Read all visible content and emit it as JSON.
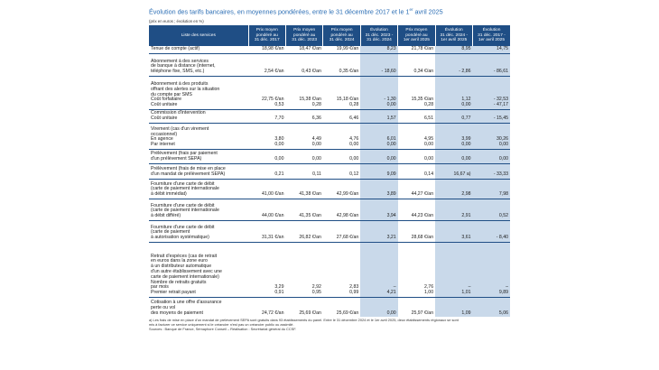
{
  "title": "Évolution des tarifs bancaires, en moyennes pondérées, entre le 31 décembre 2017 et le 1",
  "title_sup": "er",
  "title_end": " avril 2025",
  "subtitle": "(prix en euros ; évolution en %)",
  "colors": {
    "header_bg": "#1f4e85",
    "evolution_bg": "#c9d9ea",
    "title": "#2a6db4"
  },
  "columns": [
    "Liste des services",
    "Prix moyen\npondéré au\n31 déc. 2017",
    "Prix moyen\npondéré au\n31 déc. 2023",
    "Prix moyen\npondéré au\n31 déc. 2024",
    "Évolution\n31 déc. 2023 -\n31 déc. 2024",
    "Prix moyen\npondéré au\n1er avril 2025",
    "Évolution\n31 déc. 2024 -\n1er avril 2025",
    "Évolution\n31 déc. 2017 -\n1er avril 2025"
  ],
  "rows": [
    {
      "label": "Tenue de compte (actif)",
      "v": [
        "18,98 €/an",
        "18,47 €/an",
        "19,99 €/an",
        "8,23",
        "21,78 €/an",
        "8,95",
        "14,75"
      ],
      "h": 8
    },
    {
      "label": "Abonnement à des services\nde banque à distance (internet,\ntéléphone fixe, SMS, etc.)",
      "v": [
        "2,54 €/an",
        "0,43 €/an",
        "0,35 €/an",
        "- 18,60",
        "0,34 €/an",
        "- 2,86",
        "- 86,61"
      ],
      "h": 25
    },
    {
      "label": "Abonnement à des produits\noffrant des alertes sur la situation\ndu compte par SMS\n        Coût forfaitaire\n        Coût unitaire",
      "v": [
        "22,75 €/an\n0,53",
        "15,38 €/an\n0,28",
        "15,18 €/an\n0,28",
        "- 1,30\n0,00",
        "15,35 €/an\n0,28",
        "1,12\n0,00",
        "- 32,53\n- 47,17"
      ],
      "h": 37
    },
    {
      "label": "Commission d'intervention\n        Coût unitaire",
      "v": [
        "7,70",
        "6,36",
        "6,46",
        "1,57",
        "6,51",
        "0,77",
        "- 15,45"
      ],
      "h": 15
    },
    {
      "label": "Virement (cas d'un virement\noccasionnel)\n        En agence\n        Par internet",
      "v": [
        "3,80\n0,00",
        "4,49\n0,00",
        "4,76\n0,00",
        "6,01\n0,00",
        "4,95\n0,00",
        "3,99\n0,00",
        "30,26\n0,00"
      ],
      "h": 29
    },
    {
      "label": "Prélèvement (frais par paiement\nd'un prélèvement SEPA)",
      "v": [
        "0,00",
        "0,00",
        "0,00",
        "0,00",
        "0,00",
        "0,00",
        "0,00"
      ],
      "h": 16
    },
    {
      "label": "Prélèvement (frais de mise en place\nd'un mandat de prélèvement SEPA)",
      "v": [
        "0,21",
        "0,11",
        "0,12",
        "9,09",
        "0,14",
        "16,67 a)",
        "- 33,33"
      ],
      "h": 17
    },
    {
      "label": "Fourniture d'une carte de débit\n(carte de paiement internationale\nà débit immédiat)",
      "v": [
        "41,00 €/an",
        "41,38 €/an",
        "42,99 €/an",
        "3,89",
        "44,27 €/an",
        "2,98",
        "7,98"
      ],
      "h": 22
    },
    {
      "label": "Fourniture d'une carte de débit\n(carte de paiement internationale\nà débit différé)",
      "v": [
        "44,00 €/an",
        "41,35 €/an",
        "42,98 €/an",
        "3,94",
        "44,23 €/an",
        "2,91",
        "0,52"
      ],
      "h": 24
    },
    {
      "label": "Fourniture d'une carte de débit\n(carte de paiement\nà autorisation systématique)",
      "v": [
        "31,31 €/an",
        "26,82 €/an",
        "27,68 €/an",
        "3,21",
        "28,68 €/an",
        "3,61",
        "- 8,40"
      ],
      "h": 24
    },
    {
      "label": "Retrait d'espèces (cas de retrait\nen euros dans la zone euro\nà un distributeur automatique\nd'un autre établissement avec une\ncarte de paiement internationale)\n        Nombre de retraits gratuits\n        par mois\n        Premier retrait payant",
      "v": [
        "3,29\n0,91",
        "2,92\n0,95",
        "2,83\n0,99",
        "–\n4,21",
        "2,76\n1,00",
        "–\n1,01",
        "–\n9,89"
      ],
      "h": 61
    },
    {
      "label": "Cotisation à une offre d'assurance\nperte ou vol\ndes moyens de paiement",
      "v": [
        "24,72 €/an",
        "25,69 €/an",
        "25,69 €/an",
        "0,00",
        "25,97 €/an",
        "1,09",
        "5,06"
      ],
      "h": 22
    }
  ],
  "footnotes": [
    "a) Les frais de mise en place d'un mandat de prélèvement SEPA sont gratuits dans 93 établissements du panel. Entre le 31 décembre 2024 et le 1er avril 2025, deux établissements régionaux se sont",
    "mis à facturer ce service uniquement si le créancier n'est pas un créancier public ou assimilé.",
    "Sources : Banque de France, Sémaphore Conseil – Réalisation : Secrétariat général du CCSF."
  ]
}
